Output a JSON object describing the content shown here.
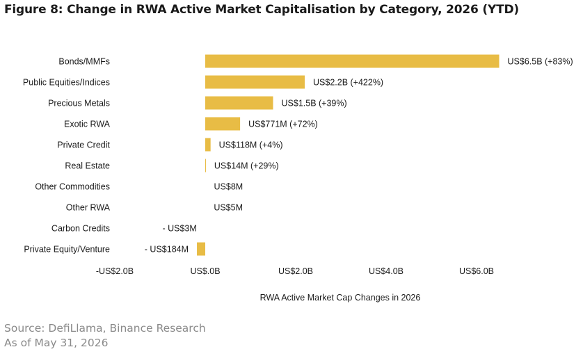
{
  "title": "Figure 8: Change in RWA Active Market Capitalisation by Category, 2026 (YTD)",
  "source": "Source: DefiLlama, Binance Research",
  "as_of": "As of May 31, 2026",
  "colors": {
    "bar": "#E8BC45",
    "text": "#1a1a1a",
    "footnote": "#8a8a8a"
  },
  "chart_data": {
    "type": "bar",
    "orientation": "horizontal",
    "xlabel": "RWA Active Market Cap Changes in 2026",
    "xlim": [
      -2.0,
      6.5
    ],
    "xticks": [
      -2.0,
      0.0,
      2.0,
      4.0,
      6.0
    ],
    "xtick_labels": [
      "-US$2.0B",
      "US$.0B",
      "US$2.0B",
      "US$4.0B",
      "US$6.0B"
    ],
    "grid": false,
    "categories": [
      "Bonds/MMFs",
      "Public Equities/Indices",
      "Precious Metals",
      "Exotic RWA",
      "Private Credit",
      "Real Estate",
      "Other Commodities",
      "Other RWA",
      "Carbon Credits",
      "Private Equity/Venture"
    ],
    "values": [
      6.5,
      2.2,
      1.5,
      0.771,
      0.118,
      0.014,
      0.008,
      0.005,
      -0.003,
      -0.184
    ],
    "data_labels": [
      "US$6.5B (+83%)",
      "US$2.2B (+422%)",
      "US$1.5B (+39%)",
      "US$771M (+72%)",
      "US$118M (+4%)",
      "US$14M (+29%)",
      "US$8M",
      "US$5M",
      "- US$3M",
      "- US$184M"
    ]
  }
}
